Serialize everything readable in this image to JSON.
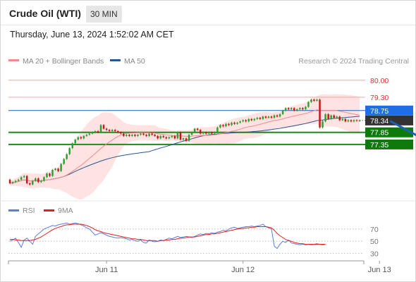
{
  "header": {
    "title": "Crude Oil (WTI)",
    "timeframe": "30 MIN",
    "timestamp": "Thursday, June 13, 2024 1:52:02 AM CET"
  },
  "attribution": "Research © 2024 Trading Central",
  "colors": {
    "resistance": "#e03030",
    "resistance_line": "#f4a6a6",
    "pivot": "#1f5fb4",
    "pivot_label": "#1e6fe6",
    "support": "#1e8a1e",
    "support_label": "#0e7a0e",
    "price_label": "#333333",
    "ma20": "#f28b8b",
    "ma50": "#2a5599",
    "band": "#ffd8d8",
    "candle_up": "#2fa02f",
    "candle_down": "#c21a1a",
    "rsi": "#5b7fe0",
    "rsi_ma": "#e02020",
    "arrow": "#1f5fb4"
  },
  "chart_data": [
    {
      "type": "candlestick",
      "legend": [
        {
          "name": "MA 20 + Bollinger Bands",
          "color": "#f28b8b"
        },
        {
          "name": "MA 50",
          "color": "#2a5599"
        }
      ],
      "x_tick_labels": [
        "Jun 11",
        "Jun 12",
        "Jun 13"
      ],
      "x_tick_index": [
        34,
        82,
        130
      ],
      "ylim": [
        75.4,
        80.4
      ],
      "levels": [
        {
          "value": 80.0,
          "label": "80.00",
          "kind": "resistance"
        },
        {
          "value": 79.3,
          "label": "79.30",
          "kind": "resistance"
        },
        {
          "value": 78.75,
          "label": "78.75",
          "kind": "pivot"
        },
        {
          "value": 77.85,
          "label": "77.85",
          "kind": "support"
        },
        {
          "value": 77.35,
          "label": "77.35",
          "kind": "support"
        }
      ],
      "last_price": {
        "value": 78.34,
        "label": "78.34"
      },
      "arrow": {
        "from_index": 134,
        "from_value": 78.3,
        "to_index": 145,
        "to_value": 77.55
      },
      "prices": [
        [
          75.9,
          75.75
        ],
        [
          75.75,
          75.8
        ],
        [
          75.8,
          75.85
        ],
        [
          75.85,
          75.9
        ],
        [
          75.9,
          76.0
        ],
        [
          76.0,
          76.05
        ],
        [
          76.05,
          75.75
        ],
        [
          75.75,
          75.7
        ],
        [
          75.7,
          75.85
        ],
        [
          75.85,
          75.95
        ],
        [
          75.95,
          75.8
        ],
        [
          75.8,
          75.85
        ],
        [
          75.85,
          76.0
        ],
        [
          76.0,
          76.15
        ],
        [
          76.15,
          76.05
        ],
        [
          76.05,
          76.3
        ],
        [
          76.3,
          76.35
        ],
        [
          76.35,
          76.25
        ],
        [
          76.25,
          76.55
        ],
        [
          76.55,
          76.75
        ],
        [
          76.75,
          76.95
        ],
        [
          76.95,
          77.2
        ],
        [
          77.2,
          77.4
        ],
        [
          77.4,
          77.55
        ],
        [
          77.55,
          77.65
        ],
        [
          77.65,
          77.6
        ],
        [
          77.6,
          77.7
        ],
        [
          77.7,
          77.75
        ],
        [
          77.75,
          77.8
        ],
        [
          77.8,
          77.85
        ],
        [
          77.85,
          77.9
        ],
        [
          77.9,
          77.85
        ],
        [
          77.85,
          78.15
        ],
        [
          78.15,
          78.0
        ],
        [
          78.0,
          77.95
        ],
        [
          77.95,
          77.9
        ],
        [
          77.9,
          77.95
        ],
        [
          77.95,
          77.9
        ],
        [
          77.9,
          77.85
        ],
        [
          77.85,
          77.8
        ],
        [
          77.8,
          77.7
        ],
        [
          77.7,
          77.75
        ],
        [
          77.75,
          77.7
        ],
        [
          77.7,
          77.75
        ],
        [
          77.75,
          77.7
        ],
        [
          77.7,
          77.75
        ],
        [
          77.75,
          77.8
        ],
        [
          77.8,
          77.75
        ],
        [
          77.75,
          77.7
        ],
        [
          77.7,
          77.8
        ],
        [
          77.8,
          77.75
        ],
        [
          77.75,
          77.7
        ],
        [
          77.7,
          77.6
        ],
        [
          77.6,
          77.7
        ],
        [
          77.7,
          77.65
        ],
        [
          77.65,
          77.6
        ],
        [
          77.6,
          77.65
        ],
        [
          77.65,
          77.7
        ],
        [
          77.7,
          77.6
        ],
        [
          77.6,
          77.85
        ],
        [
          77.85,
          77.55
        ],
        [
          77.55,
          77.6
        ],
        [
          77.6,
          77.5
        ],
        [
          77.5,
          77.75
        ],
        [
          77.75,
          77.85
        ],
        [
          77.85,
          78.0
        ],
        [
          78.0,
          77.95
        ],
        [
          77.95,
          77.8
        ],
        [
          77.8,
          77.85
        ],
        [
          77.85,
          77.8
        ],
        [
          77.8,
          77.85
        ],
        [
          77.85,
          77.8
        ],
        [
          77.8,
          77.85
        ],
        [
          77.85,
          78.05
        ],
        [
          78.05,
          78.15
        ],
        [
          78.15,
          78.1
        ],
        [
          78.1,
          78.2
        ],
        [
          78.2,
          78.15
        ],
        [
          78.15,
          78.25
        ],
        [
          78.25,
          78.2
        ],
        [
          78.2,
          78.25
        ],
        [
          78.25,
          78.3
        ],
        [
          78.3,
          78.35
        ],
        [
          78.35,
          78.3
        ],
        [
          78.3,
          78.4
        ],
        [
          78.4,
          78.35
        ],
        [
          78.35,
          78.4
        ],
        [
          78.4,
          78.45
        ],
        [
          78.45,
          78.4
        ],
        [
          78.4,
          78.5
        ],
        [
          78.5,
          78.45
        ],
        [
          78.45,
          78.5
        ],
        [
          78.5,
          78.45
        ],
        [
          78.45,
          78.55
        ],
        [
          78.55,
          78.5
        ],
        [
          78.5,
          78.6
        ],
        [
          78.6,
          78.75
        ],
        [
          78.75,
          78.85
        ],
        [
          78.85,
          78.8
        ],
        [
          78.8,
          78.85
        ],
        [
          78.85,
          78.75
        ],
        [
          78.75,
          78.8
        ],
        [
          78.8,
          78.85
        ],
        [
          78.85,
          78.8
        ],
        [
          78.8,
          78.9
        ],
        [
          78.9,
          79.1
        ],
        [
          79.1,
          79.2
        ],
        [
          79.2,
          79.15
        ],
        [
          79.15,
          79.2
        ],
        [
          79.2,
          78.05
        ],
        [
          78.05,
          78.3
        ],
        [
          78.3,
          78.6
        ],
        [
          78.6,
          78.4
        ],
        [
          78.4,
          78.55
        ],
        [
          78.55,
          78.45
        ],
        [
          78.45,
          78.5
        ],
        [
          78.5,
          78.35
        ],
        [
          78.35,
          78.4
        ],
        [
          78.4,
          78.3
        ],
        [
          78.3,
          78.35
        ],
        [
          78.35,
          78.3
        ],
        [
          78.3,
          78.35
        ],
        [
          78.35,
          78.33
        ],
        [
          78.33,
          78.34
        ]
      ],
      "rsi": [
        50,
        52,
        55,
        48,
        40,
        52,
        55,
        50,
        45,
        58,
        62,
        66,
        70,
        72,
        74,
        76,
        75,
        77,
        78,
        79,
        80,
        78,
        79,
        80,
        79,
        77,
        75,
        72,
        70,
        65,
        60,
        62,
        64,
        62,
        60,
        58,
        57,
        56,
        55,
        56,
        55,
        54,
        52,
        53,
        51,
        50,
        52,
        48,
        47,
        52,
        50,
        49,
        50,
        52,
        51,
        53,
        55,
        54,
        56,
        58,
        56,
        57,
        58,
        57,
        56,
        58,
        60,
        62,
        61,
        63,
        62,
        64,
        63,
        65,
        66,
        68,
        67,
        70,
        72,
        73,
        71,
        72,
        73,
        74,
        74,
        75,
        74,
        75,
        76,
        78,
        74,
        72,
        70,
        42,
        38,
        45,
        50,
        48,
        52,
        47,
        46,
        45,
        44,
        45,
        44,
        45,
        44,
        45,
        46,
        45,
        44,
        45
      ],
      "rsi_ma": [
        53,
        53,
        52,
        52,
        51,
        51,
        51,
        51,
        52,
        53,
        55,
        57,
        60,
        63,
        66,
        69,
        71,
        73,
        74,
        76,
        77,
        77,
        78,
        78,
        78,
        78,
        77,
        76,
        74,
        72,
        69,
        67,
        66,
        64,
        63,
        62,
        61,
        60,
        59,
        58,
        57,
        56,
        55,
        54,
        54,
        53,
        53,
        52,
        51,
        51,
        51,
        51,
        50,
        51,
        51,
        52,
        52,
        53,
        53,
        54,
        55,
        55,
        56,
        57,
        57,
        57,
        58,
        59,
        60,
        61,
        61,
        62,
        62,
        63,
        64,
        65,
        66,
        67,
        68,
        69,
        70,
        71,
        71,
        72,
        72,
        73,
        73,
        74,
        74,
        74,
        74,
        73,
        72,
        68,
        63,
        59,
        56,
        53,
        51,
        50,
        48,
        47,
        46,
        46,
        45,
        45,
        45,
        45,
        45,
        45,
        45,
        45
      ],
      "rsi_ylim": [
        20,
        85
      ],
      "rsi_levels": [
        {
          "value": 70,
          "label": "70"
        },
        {
          "value": 50,
          "label": "50"
        },
        {
          "value": 30,
          "label": "30"
        }
      ],
      "rsi_legend": [
        {
          "name": "RSI",
          "color": "#5b7fe0"
        },
        {
          "name": "9MA",
          "color": "#e02020"
        }
      ]
    }
  ]
}
